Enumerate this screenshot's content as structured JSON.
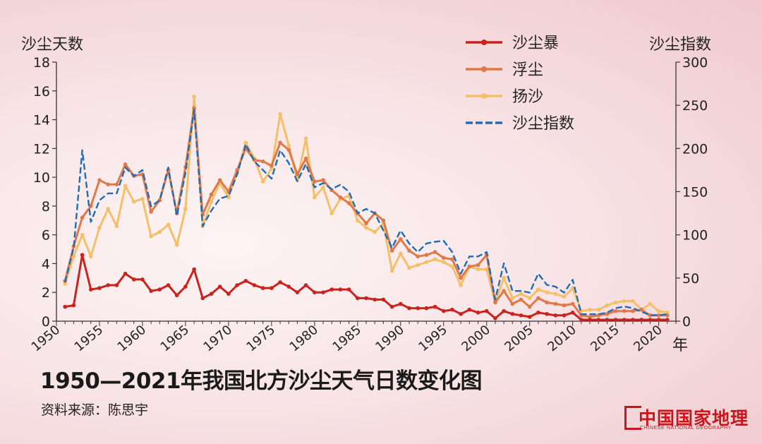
{
  "chart_data": {
    "type": "line",
    "title": "1950—2021年我国北方沙尘天气日数变化图",
    "source": "资料来源：陈思宇",
    "xlabel": "年",
    "ylabel_left": "沙尘天数",
    "ylabel_right": "沙尘指数",
    "xlim": [
      1950,
      2022
    ],
    "ylim_left": [
      0,
      18
    ],
    "ylim_right": [
      0,
      300
    ],
    "xticks": [
      1950,
      1955,
      1960,
      1965,
      1970,
      1975,
      1980,
      1985,
      1990,
      1995,
      2000,
      2005,
      2010,
      2015,
      2020
    ],
    "yticks_left": [
      0,
      2,
      4,
      6,
      8,
      10,
      12,
      14,
      16,
      18
    ],
    "yticks_right": [
      0,
      50,
      100,
      150,
      200,
      250,
      300
    ],
    "legend_position": "top-right",
    "grid": false,
    "x": [
      1951,
      1952,
      1953,
      1954,
      1955,
      1956,
      1957,
      1958,
      1959,
      1960,
      1961,
      1962,
      1963,
      1964,
      1965,
      1966,
      1967,
      1968,
      1969,
      1970,
      1971,
      1972,
      1973,
      1974,
      1975,
      1976,
      1977,
      1978,
      1979,
      1980,
      1981,
      1982,
      1983,
      1984,
      1985,
      1986,
      1987,
      1988,
      1989,
      1990,
      1991,
      1992,
      1993,
      1994,
      1995,
      1996,
      1997,
      1998,
      1999,
      2000,
      2001,
      2002,
      2003,
      2004,
      2005,
      2006,
      2007,
      2008,
      2009,
      2010,
      2011,
      2012,
      2013,
      2014,
      2015,
      2016,
      2017,
      2018,
      2019,
      2020,
      2021
    ],
    "series": [
      {
        "name": "沙尘暴",
        "axis": "left",
        "color": "#c8231c",
        "style": "solid",
        "values": [
          1.0,
          1.1,
          4.6,
          2.2,
          2.3,
          2.5,
          2.5,
          3.3,
          2.9,
          2.9,
          2.1,
          2.2,
          2.5,
          1.8,
          2.4,
          3.6,
          1.6,
          1.9,
          2.4,
          1.9,
          2.5,
          2.8,
          2.5,
          2.3,
          2.3,
          2.7,
          2.4,
          2.0,
          2.5,
          2.0,
          2.0,
          2.2,
          2.2,
          2.2,
          1.6,
          1.6,
          1.5,
          1.5,
          1.0,
          1.2,
          0.9,
          0.9,
          0.9,
          1.0,
          0.7,
          0.8,
          0.5,
          0.8,
          0.6,
          0.7,
          0.2,
          0.7,
          0.5,
          0.4,
          0.3,
          0.6,
          0.5,
          0.4,
          0.4,
          0.6,
          0.1,
          0.1,
          0.1,
          0.1,
          0.1,
          0.1,
          0.1,
          0.1,
          0.1,
          0.1,
          0.1
        ]
      },
      {
        "name": "浮尘",
        "axis": "left",
        "color": "#e07848",
        "style": "solid",
        "values": [
          2.8,
          5.2,
          7.2,
          8.0,
          9.8,
          9.5,
          9.5,
          10.9,
          10.1,
          10.2,
          7.6,
          8.4,
          10.5,
          7.5,
          10.7,
          14.8,
          7.4,
          8.8,
          9.8,
          9.0,
          10.5,
          12.0,
          11.2,
          11.1,
          10.8,
          12.4,
          11.9,
          10.2,
          11.3,
          9.7,
          9.8,
          9.1,
          8.6,
          8.2,
          7.5,
          6.8,
          7.5,
          7.0,
          4.9,
          5.7,
          4.9,
          4.5,
          4.6,
          4.8,
          4.4,
          4.3,
          3.0,
          3.8,
          3.9,
          4.6,
          1.3,
          2.1,
          1.2,
          1.5,
          1.0,
          1.6,
          1.3,
          1.2,
          1.1,
          1.2,
          0.4,
          0.3,
          0.4,
          0.5,
          0.7,
          0.7,
          0.7,
          0.8,
          0.4,
          0.4,
          0.4
        ]
      },
      {
        "name": "扬沙",
        "axis": "left",
        "color": "#f3c069",
        "style": "solid",
        "values": [
          2.6,
          4.5,
          6.0,
          4.5,
          6.5,
          7.8,
          6.6,
          9.4,
          8.3,
          8.5,
          5.9,
          6.2,
          6.7,
          5.3,
          7.8,
          15.6,
          6.6,
          8.3,
          9.6,
          8.6,
          10.3,
          12.4,
          11.3,
          9.7,
          10.6,
          14.4,
          12.2,
          9.8,
          12.7,
          8.6,
          9.3,
          7.5,
          8.5,
          8.7,
          7.0,
          6.5,
          6.2,
          6.8,
          3.5,
          4.7,
          3.7,
          3.9,
          4.1,
          4.3,
          4.1,
          3.8,
          2.5,
          3.8,
          3.6,
          3.6,
          1.3,
          3.0,
          1.6,
          1.9,
          1.6,
          2.2,
          2.0,
          1.9,
          1.7,
          2.3,
          0.7,
          0.8,
          0.8,
          1.1,
          1.3,
          1.4,
          1.4,
          0.8,
          1.2,
          0.7,
          0.6
        ]
      },
      {
        "name": "沙尘指数",
        "axis": "right",
        "color": "#1f6cb5",
        "style": "dashed",
        "values": [
          45,
          85,
          198,
          115,
          140,
          148,
          148,
          178,
          168,
          175,
          133,
          140,
          178,
          122,
          172,
          245,
          110,
          128,
          142,
          145,
          170,
          205,
          185,
          175,
          165,
          198,
          183,
          162,
          182,
          155,
          160,
          153,
          158,
          150,
          125,
          130,
          125,
          105,
          85,
          105,
          90,
          80,
          90,
          92,
          93,
          80,
          55,
          75,
          75,
          80,
          25,
          67,
          35,
          35,
          33,
          55,
          42,
          40,
          33,
          48,
          8,
          8,
          8,
          10,
          15,
          17,
          15,
          11,
          7,
          7,
          8
        ]
      }
    ]
  }
}
